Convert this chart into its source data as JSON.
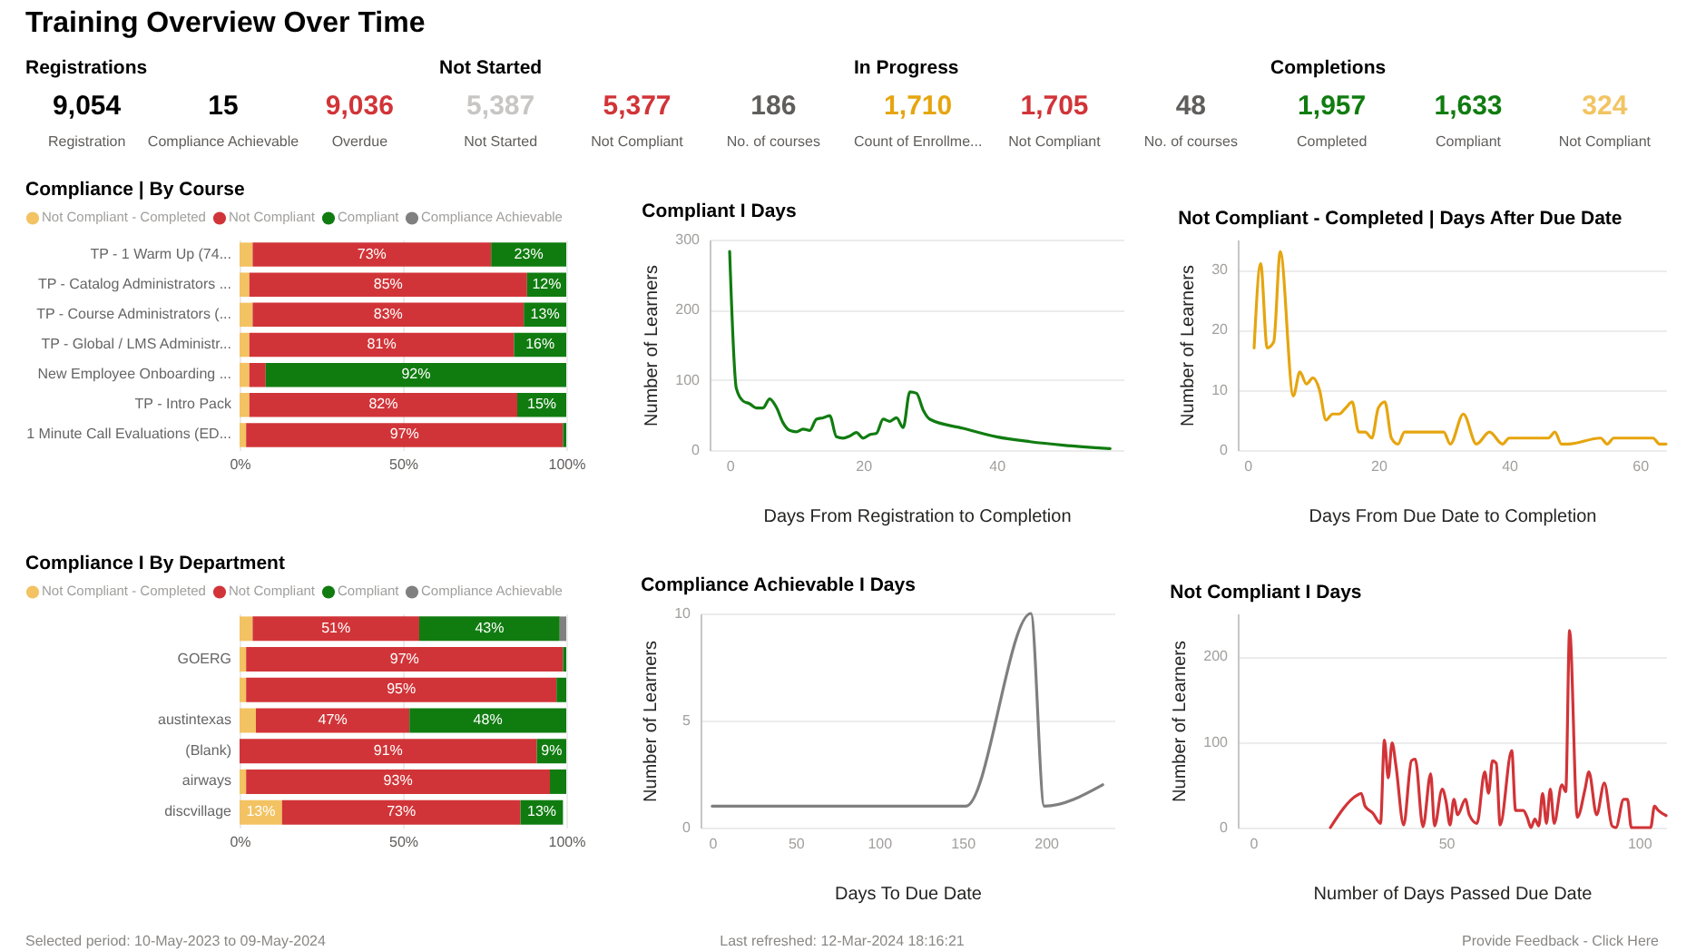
{
  "chart_data": [
    {
      "type": "other",
      "title": "Training Overview Over Time",
      "annotations": [
        "Selected period: 10-May-2023 to 09-May-2024",
        "Last refreshed: 12-Mar-2024 18:16:21",
        "Provide Feedback - Click Here"
      ]
    },
    {
      "type": "other",
      "title": "Registrations",
      "categories": [
        "Registration",
        "Compliance Achievable",
        "Overdue"
      ],
      "value_labels": [
        "9,054",
        "15",
        "9,036"
      ],
      "colors": [
        "#000000",
        "#000000",
        "#d13438"
      ]
    },
    {
      "type": "other",
      "title": "Not Started",
      "categories": [
        "Not Started",
        "Not Compliant",
        "No. of courses"
      ],
      "value_labels": [
        "5,387",
        "5,377",
        "186"
      ],
      "colors": [
        "#c8c6c4",
        "#d13438",
        "#605e5c"
      ]
    },
    {
      "type": "other",
      "title": "In Progress",
      "categories": [
        "Count of Enrollme...",
        "Not Compliant",
        "No. of courses"
      ],
      "value_labels": [
        "1,710",
        "1,705",
        "48"
      ],
      "colors": [
        "#e6a50f",
        "#d13438",
        "#605e5c"
      ]
    },
    {
      "type": "other",
      "title": "Completions",
      "categories": [
        "Completed",
        "Compliant",
        "Not Compliant"
      ],
      "value_labels": [
        "1,957",
        "1,633",
        "324"
      ],
      "colors": [
        "#107c10",
        "#107c10",
        "#f2c462"
      ]
    },
    {
      "type": "bar",
      "title": "Compliance | By Course",
      "orientation": "horizontal",
      "stacked": true,
      "legend": "top",
      "grid": "x",
      "xlim": [
        0,
        100
      ],
      "xticks": [
        {
          "value": 0,
          "label": "0%"
        },
        {
          "value": 50,
          "label": "50%"
        },
        {
          "value": 100,
          "label": "100%"
        }
      ],
      "categories": [
        "TP - 1 Warm Up (74...",
        "TP - Catalog Administrators ...",
        "TP - Course Administrators (...",
        "TP - Global / LMS Administr...",
        "New Employee Onboarding ...",
        "TP - Intro Pack",
        "1 Minute Call Evaluations (ED..."
      ],
      "series": [
        {
          "name": "Not Compliant - Completed",
          "color": "#f3c262",
          "values": [
            4,
            3,
            4,
            3,
            3,
            3,
            2
          ]
        },
        {
          "name": "Not Compliant",
          "color": "#d13438",
          "values": [
            73,
            85,
            83,
            81,
            5,
            82,
            97
          ],
          "value_labels": [
            "73%",
            "85%",
            "83%",
            "81%",
            null,
            "82%",
            "97%"
          ]
        },
        {
          "name": "Compliant",
          "color": "#107c10",
          "values": [
            23,
            12,
            13,
            16,
            92,
            15,
            1
          ],
          "value_labels": [
            "23%",
            "12%",
            "13%",
            "16%",
            "92%",
            "15%",
            null
          ]
        },
        {
          "name": "Compliance Achievable",
          "color": "#808080",
          "values": [
            null,
            null,
            null,
            null,
            null,
            null,
            null
          ]
        }
      ]
    },
    {
      "type": "line",
      "title": "Compliant I Days",
      "xlabel": "Days From Registration to Completion",
      "ylabel": "Number of Learners",
      "grid": "y",
      "xlim": [
        -3,
        59
      ],
      "xticks": [
        0,
        20,
        40
      ],
      "ylim": [
        0,
        300
      ],
      "yticks": [
        0,
        100,
        200,
        300
      ],
      "x": [
        0,
        1,
        2,
        3,
        4,
        5,
        6,
        7,
        8,
        9,
        10,
        11,
        12,
        13,
        14,
        15,
        16,
        17,
        18,
        19,
        20,
        21,
        22,
        23,
        24,
        25,
        26,
        27,
        28,
        29,
        30,
        35,
        40,
        45,
        50,
        57
      ],
      "series": [
        {
          "color": "#107c10",
          "values": [
            283,
            88,
            70,
            66,
            60,
            60,
            73,
            61,
            39,
            28,
            26,
            30,
            28,
            44,
            46,
            49,
            19,
            17,
            20,
            25,
            17,
            22,
            24,
            44,
            41,
            46,
            32,
            83,
            81,
            57,
            44,
            31,
            19,
            12,
            7,
            2
          ]
        }
      ]
    },
    {
      "type": "line",
      "title": "Not Compliant - Completed | Days After Due Date",
      "xlabel": "Days From Due Date to Completion",
      "ylabel": "Number of Learners",
      "grid": "y",
      "xlim": [
        -1.5,
        64
      ],
      "xticks": [
        0,
        20,
        40,
        60
      ],
      "ylim": [
        0,
        35
      ],
      "yticks": [
        0,
        10,
        20,
        30
      ],
      "x": [
        1,
        2,
        3,
        4,
        5,
        7,
        8,
        9,
        10,
        11,
        12,
        13,
        14,
        15,
        16,
        17,
        18,
        19,
        20,
        21,
        22,
        23,
        24,
        30,
        31,
        33,
        35,
        37,
        39,
        40,
        46,
        47,
        48,
        49,
        54,
        55,
        56,
        62,
        63,
        64
      ],
      "series": [
        {
          "color": "#e6a50f",
          "values": [
            17,
            31,
            17,
            18,
            33,
            9,
            13,
            11,
            12,
            10,
            5,
            6,
            6,
            7,
            8,
            3,
            3,
            2,
            7,
            8,
            2,
            1,
            3,
            3,
            1,
            6,
            1,
            3,
            1,
            2,
            2,
            3,
            1,
            1,
            2,
            1,
            2,
            2,
            1,
            1
          ]
        }
      ]
    },
    {
      "type": "bar",
      "title": "Compliance I By Department",
      "orientation": "horizontal",
      "stacked": true,
      "legend": "top",
      "grid": "x",
      "xlim": [
        0,
        100
      ],
      "xticks": [
        {
          "value": 0,
          "label": "0%"
        },
        {
          "value": 50,
          "label": "50%"
        },
        {
          "value": 100,
          "label": "100%"
        }
      ],
      "categories": [
        null,
        "GOERG",
        null,
        "austintexas",
        "(Blank)",
        "airways",
        "discvillage"
      ],
      "series": [
        {
          "name": "Not Compliant - Completed",
          "color": "#f3c262",
          "values": [
            4,
            2,
            2,
            5,
            null,
            2,
            13
          ],
          "value_labels": [
            null,
            null,
            null,
            null,
            null,
            null,
            "13%"
          ]
        },
        {
          "name": "Not Compliant",
          "color": "#d13438",
          "values": [
            51,
            97,
            95,
            47,
            91,
            93,
            73
          ],
          "value_labels": [
            "51%",
            "97%",
            "95%",
            "47%",
            "91%",
            "93%",
            "73%"
          ]
        },
        {
          "name": "Compliant",
          "color": "#107c10",
          "values": [
            43,
            1,
            3,
            48,
            9,
            5,
            13
          ],
          "value_labels": [
            "43%",
            null,
            null,
            "48%",
            "9%",
            null,
            "13%"
          ]
        },
        {
          "name": "Compliance Achievable",
          "color": "#808080",
          "values": [
            2,
            null,
            null,
            null,
            null,
            null,
            null
          ]
        }
      ]
    },
    {
      "type": "line",
      "title": "Compliance Achievable I Days",
      "xlabel": "Days To Due Date",
      "ylabel": "Number of Learners",
      "grid": "y",
      "xlim": [
        -7,
        241
      ],
      "xticks": [
        0,
        50,
        100,
        150,
        200
      ],
      "ylim": [
        0,
        10
      ],
      "yticks": [
        0,
        5,
        10
      ],
      "x": [
        0,
        152,
        191,
        199,
        234
      ],
      "series": [
        {
          "color": "#7f7f7f",
          "values": [
            1,
            1,
            10,
            1,
            2
          ]
        }
      ]
    },
    {
      "type": "line",
      "title": "Not Compliant I Days",
      "xlabel": "Number of Days Passed Due Date",
      "ylabel": "Number of Learners",
      "grid": "y",
      "xlim": [
        -4,
        107
      ],
      "xticks": [
        0,
        50,
        100
      ],
      "ylim": [
        0,
        250
      ],
      "yticks": [
        0,
        100,
        200
      ],
      "x": [
        20,
        27,
        28,
        29,
        31,
        33,
        34,
        35,
        36,
        37,
        39,
        41,
        42,
        44,
        46,
        47,
        49,
        50,
        51,
        52,
        53,
        55,
        56,
        58,
        60,
        61,
        62,
        63,
        64,
        67,
        68,
        70,
        71,
        72,
        73,
        74,
        75,
        76,
        77,
        78,
        80,
        81,
        82,
        84,
        86,
        87,
        89,
        91,
        93,
        94,
        96,
        97,
        98,
        100,
        103,
        104,
        105,
        107
      ],
      "series": [
        {
          "color": "#d13438",
          "values": [
            0,
            38,
            40,
            25,
            17,
            5,
            102,
            58,
            99,
            72,
            3,
            78,
            80,
            1,
            63,
            2,
            45,
            30,
            3,
            33,
            15,
            33,
            15,
            5,
            65,
            40,
            78,
            75,
            3,
            90,
            20,
            20,
            12,
            0,
            10,
            2,
            40,
            5,
            45,
            5,
            50,
            42,
            230,
            12,
            45,
            65,
            15,
            52,
            2,
            0,
            33,
            33,
            0,
            0,
            0,
            25,
            20,
            14
          ]
        }
      ]
    }
  ]
}
